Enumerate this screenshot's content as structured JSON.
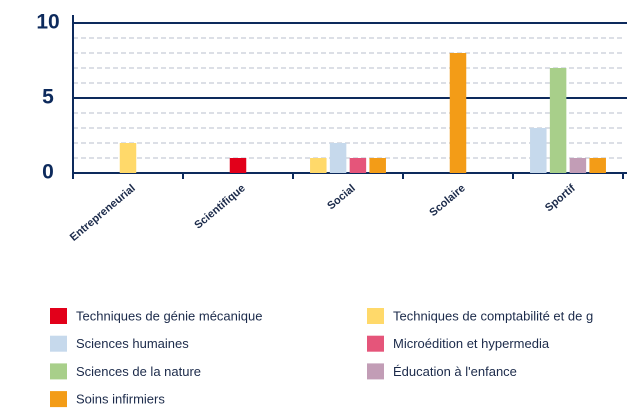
{
  "chart_data": {
    "type": "bar",
    "categories": [
      "Entrepreneurial",
      "Scientifique",
      "Social",
      "Scolaire",
      "Sportif"
    ],
    "series": [
      {
        "name": "Techniques de génie mécanique",
        "color": "#e2001a",
        "values": [
          null,
          1,
          null,
          null,
          null
        ]
      },
      {
        "name": "Techniques de comptabilité et de g",
        "color": "#ffd96a",
        "values": [
          2,
          null,
          1,
          null,
          null
        ]
      },
      {
        "name": "Sciences humaines",
        "color": "#c6d9ec",
        "values": [
          null,
          null,
          2,
          null,
          3
        ]
      },
      {
        "name": "Microédition et hypermedia",
        "color": "#e5557a",
        "values": [
          null,
          null,
          1,
          null,
          null
        ]
      },
      {
        "name": "Sciences de la nature",
        "color": "#a8cf8a",
        "values": [
          null,
          null,
          null,
          null,
          7
        ]
      },
      {
        "name": "Éducation à l'enfance",
        "color": "#c29db6",
        "values": [
          null,
          null,
          null,
          null,
          1
        ]
      },
      {
        "name": "Soins infirmiers",
        "color": "#f39c17",
        "values": [
          null,
          null,
          1,
          8,
          1
        ]
      }
    ],
    "ylim": [
      0,
      10
    ],
    "yticks": [
      0,
      5,
      10
    ],
    "minor_yticks": [
      1,
      2,
      3,
      4,
      6,
      7,
      8,
      9
    ],
    "grid": true
  }
}
